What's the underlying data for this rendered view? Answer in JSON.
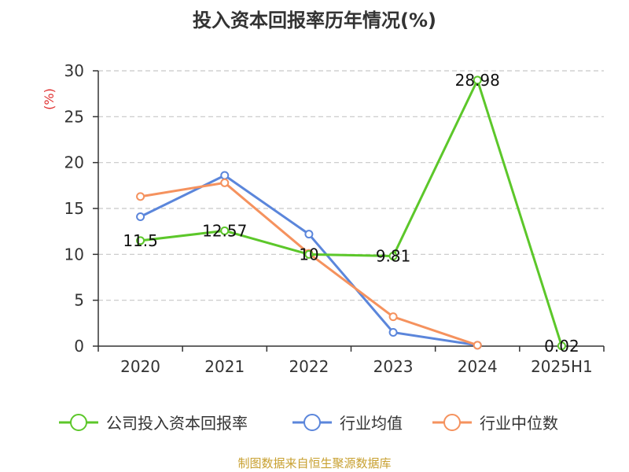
{
  "chart_data": {
    "type": "line",
    "title": "投入资本回报率历年情况(%)",
    "ylabel": "(%)",
    "xlabel": "",
    "categories": [
      "2020",
      "2021",
      "2022",
      "2023",
      "2024",
      "2025H1"
    ],
    "ylim": [
      0,
      30
    ],
    "yticks": [
      0,
      5,
      10,
      15,
      20,
      25,
      30
    ],
    "grid": true,
    "legend_position": "bottom",
    "series": [
      {
        "name": "公司投入资本回报率",
        "color": "#5cc72a",
        "values": [
          11.5,
          12.57,
          10,
          9.81,
          28.98,
          0.02
        ],
        "labels": [
          "11.5",
          "12.57",
          "10",
          "9.81",
          "28.98",
          "0.02"
        ]
      },
      {
        "name": "行业均值",
        "color": "#5b86db",
        "values": [
          14.1,
          18.6,
          12.2,
          1.5,
          0.1,
          null
        ]
      },
      {
        "name": "行业中位数",
        "color": "#f5925e",
        "values": [
          16.3,
          17.8,
          10.1,
          3.2,
          0.1,
          null
        ]
      }
    ]
  },
  "source": "制图数据来自恒生聚源数据库"
}
